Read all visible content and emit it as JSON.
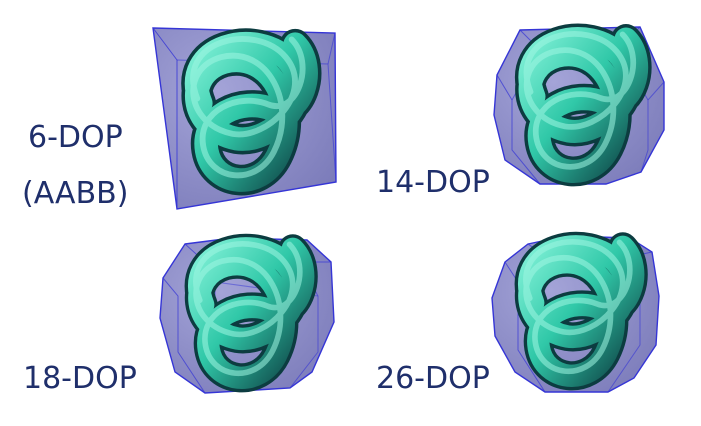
{
  "figure": {
    "panels": [
      {
        "id": "6dop",
        "label": "6-DOP",
        "sublabel": "(AABB)",
        "k": 6
      },
      {
        "id": "14dop",
        "label": "14-DOP",
        "k": 14
      },
      {
        "id": "18dop",
        "label": "18-DOP",
        "k": 18
      },
      {
        "id": "26dop",
        "label": "26-DOP",
        "k": 26
      }
    ],
    "colors": {
      "hull_fill": "#8c8cc8",
      "hull_edge": "#3535d6",
      "knot": "#30c8a8",
      "knot_dark": "#0c3c40",
      "knot_light": "#7ff0d6",
      "label_text": "#1f2f6b"
    },
    "shape": "trefoil-knot"
  }
}
